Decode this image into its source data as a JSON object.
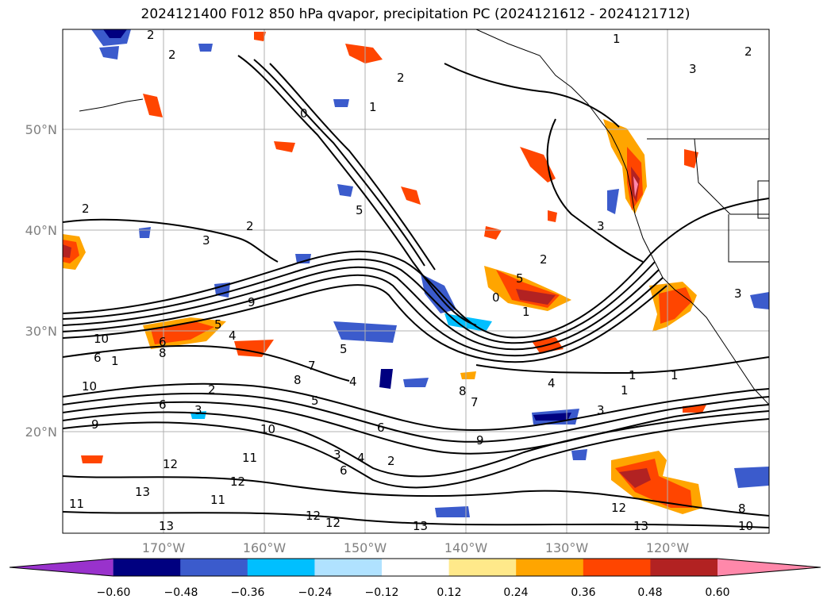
{
  "title": "2024121400 F012 850 hPa qvapor, precipitation PC (2024121612 - 2024121712)",
  "lat_labels": [
    "50°N",
    "40°N",
    "30°N",
    "20°N"
  ],
  "lon_labels": [
    "170°W",
    "160°W",
    "150°W",
    "140°W",
    "130°W",
    "120°W"
  ],
  "colorbar": {
    "ticks": [
      "−0.60",
      "−0.48",
      "−0.36",
      "−0.24",
      "−0.12",
      "0.12",
      "0.24",
      "0.36",
      "0.48",
      "0.60"
    ],
    "colors": [
      "#9932cc",
      "#000080",
      "#3b5bcc",
      "#00bfff",
      "#b0e2ff",
      "#ffffff",
      "#ffe98a",
      "#ffa500",
      "#ff4500",
      "#b22222",
      "#ff88aa"
    ]
  },
  "contour_labels": [
    "2",
    "2",
    "1",
    "2",
    "3",
    "1",
    "2",
    "0",
    "5",
    "2",
    "3",
    "2",
    "0",
    "3",
    "5",
    "2",
    "3",
    "9",
    "6",
    "5",
    "4",
    "10",
    "6",
    "1",
    "8",
    "5",
    "10",
    "7",
    "8",
    "4",
    "9",
    "3",
    "6",
    "2",
    "1",
    "1",
    "1",
    "3",
    "1",
    "4",
    "8",
    "7",
    "6",
    "5",
    "3",
    "4",
    "6",
    "2",
    "9",
    "10",
    "12",
    "11",
    "12",
    "11",
    "12",
    "13",
    "13",
    "12",
    "13",
    "11",
    "8",
    "10",
    "12",
    "13"
  ],
  "colors": {
    "frame": "#000000",
    "grid": "#b0b0b0",
    "contour": "#000000"
  }
}
